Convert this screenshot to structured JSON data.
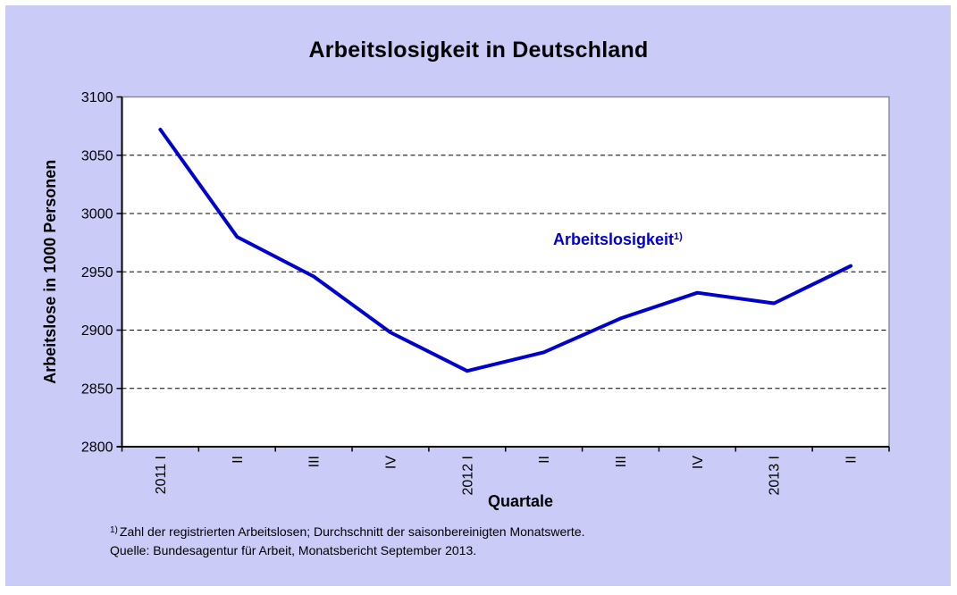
{
  "chart_data": {
    "type": "line",
    "title": "Arbeitslosigkeit in Deutschland",
    "categories": [
      "2011 I",
      "II",
      "III",
      "IV",
      "2012 I",
      "II",
      "III",
      "IV",
      "2013 I",
      "II"
    ],
    "series": [
      {
        "name": "Arbeitslosigkeit",
        "values": [
          3072,
          2980,
          2946,
          2898,
          2865,
          2881,
          2910,
          2932,
          2923,
          2955
        ]
      }
    ],
    "xlabel": "Quartale",
    "ylabel": "Arbeitslose in 1000 Personen",
    "ylim": [
      2800,
      3100
    ],
    "ytick_step": 50,
    "grid": "horizontal dashed black lines at each 50",
    "legend_position": "in-plot text annotation, upper right",
    "line_color": "#0000cc",
    "panel_background": "#cbcbf8",
    "plot_background": "#ffffff",
    "plot_border_color": "#858599"
  },
  "annotation": {
    "label": "Arbeitslosigkeit",
    "sup": "1)"
  },
  "footnotes": {
    "line1_sup": "1)",
    "line1_text": "Zahl der registrierten Arbeitslosen; Durchschnitt der saisonbereinigten Monatswerte.",
    "line2": "Quelle: Bundesagentur für Arbeit, Monatsbericht September 2013."
  }
}
